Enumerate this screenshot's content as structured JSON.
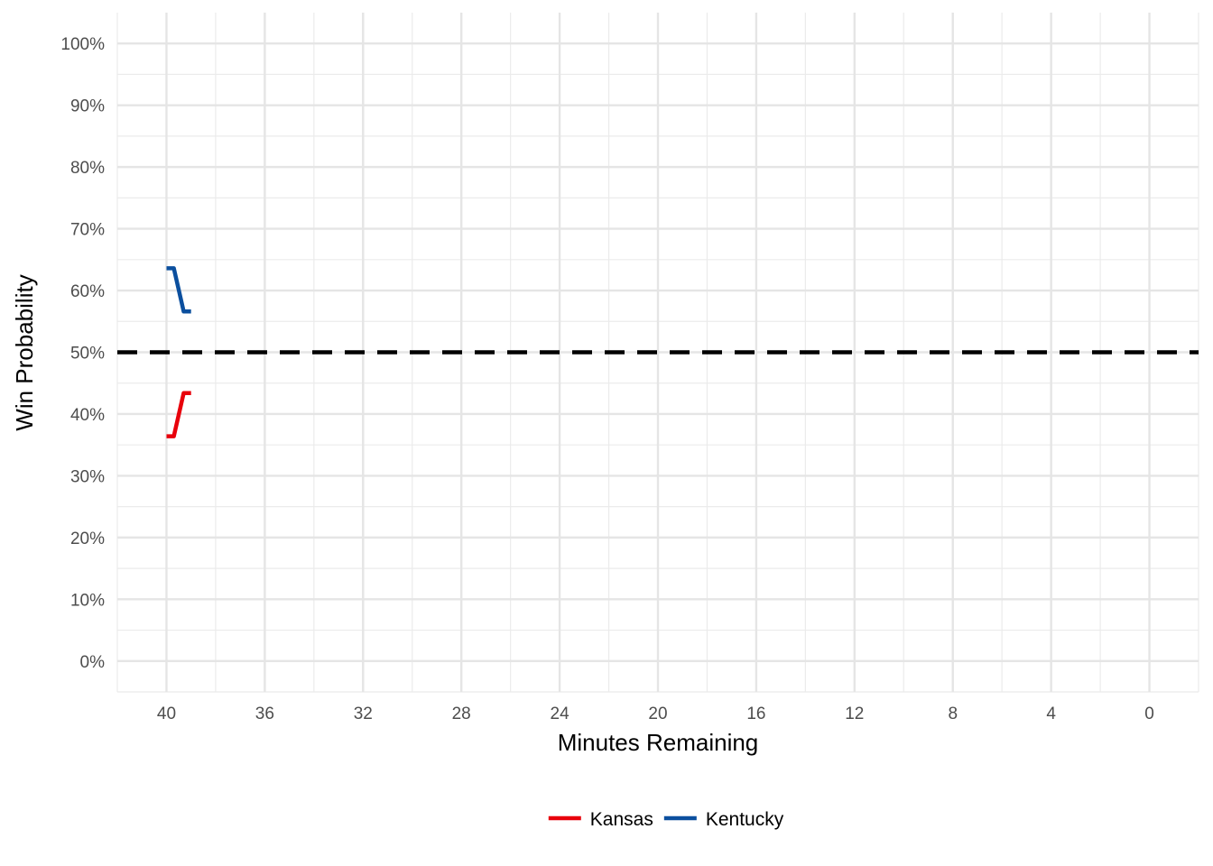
{
  "chart_data": {
    "type": "line",
    "title": "",
    "xlabel": "Minutes Remaining",
    "ylabel": "Win Probability",
    "xlim": [
      42,
      -2
    ],
    "ylim": [
      -5,
      105
    ],
    "x_reversed": true,
    "x_ticks": [
      40,
      36,
      32,
      28,
      24,
      20,
      16,
      12,
      8,
      4,
      0
    ],
    "x_tick_labels": [
      "40",
      "36",
      "32",
      "28",
      "24",
      "20",
      "16",
      "12",
      "8",
      "4",
      "0"
    ],
    "y_ticks": [
      0,
      10,
      20,
      30,
      40,
      50,
      60,
      70,
      80,
      90,
      100
    ],
    "y_tick_labels": [
      "0%",
      "10%",
      "20%",
      "30%",
      "40%",
      "50%",
      "60%",
      "70%",
      "80%",
      "90%",
      "100%"
    ],
    "grid": true,
    "reference_line": {
      "y": 50,
      "style": "dashed",
      "color": "#000000"
    },
    "legend": {
      "position": "bottom"
    },
    "series": [
      {
        "name": "Kansas",
        "color": "#e8000b",
        "x": [
          40,
          39.7,
          39.3,
          39.0
        ],
        "y": [
          36.4,
          36.4,
          43.4,
          43.4
        ]
      },
      {
        "name": "Kentucky",
        "color": "#0b4f9e",
        "x": [
          40,
          39.7,
          39.3,
          39.0
        ],
        "y": [
          63.6,
          63.6,
          56.6,
          56.6
        ]
      }
    ]
  }
}
